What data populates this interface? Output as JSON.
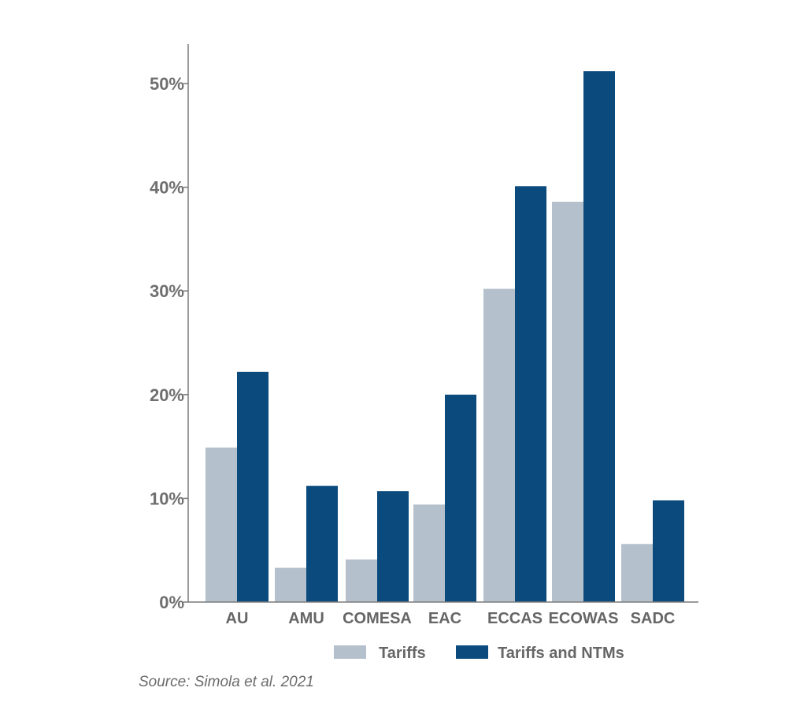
{
  "chart_data": {
    "type": "bar",
    "categories": [
      "AU",
      "AMU",
      "COMESA",
      "EAC",
      "ECCAS",
      "ECOWAS",
      "SADC"
    ],
    "series": [
      {
        "name": "Tariffs",
        "color": "#b4c0cb",
        "values": [
          14.9,
          3.3,
          4.1,
          9.4,
          30.2,
          38.6,
          5.6
        ]
      },
      {
        "name": "Tariffs and NTMs",
        "color": "#0b4a7d",
        "values": [
          22.2,
          11.2,
          10.7,
          20.0,
          40.1,
          51.2,
          9.8
        ]
      }
    ],
    "y_ticks": [
      {
        "value": 0,
        "label": "0%"
      },
      {
        "value": 10,
        "label": "10%"
      },
      {
        "value": 20,
        "label": "20%"
      },
      {
        "value": 30,
        "label": "30%"
      },
      {
        "value": 40,
        "label": "40%"
      },
      {
        "value": 50,
        "label": "50%"
      }
    ],
    "ylim": [
      0,
      54
    ],
    "grid": false,
    "legend_position": "bottom",
    "title": "",
    "xlabel": "",
    "ylabel": ""
  },
  "source": "Source: Simola et al. 2021"
}
